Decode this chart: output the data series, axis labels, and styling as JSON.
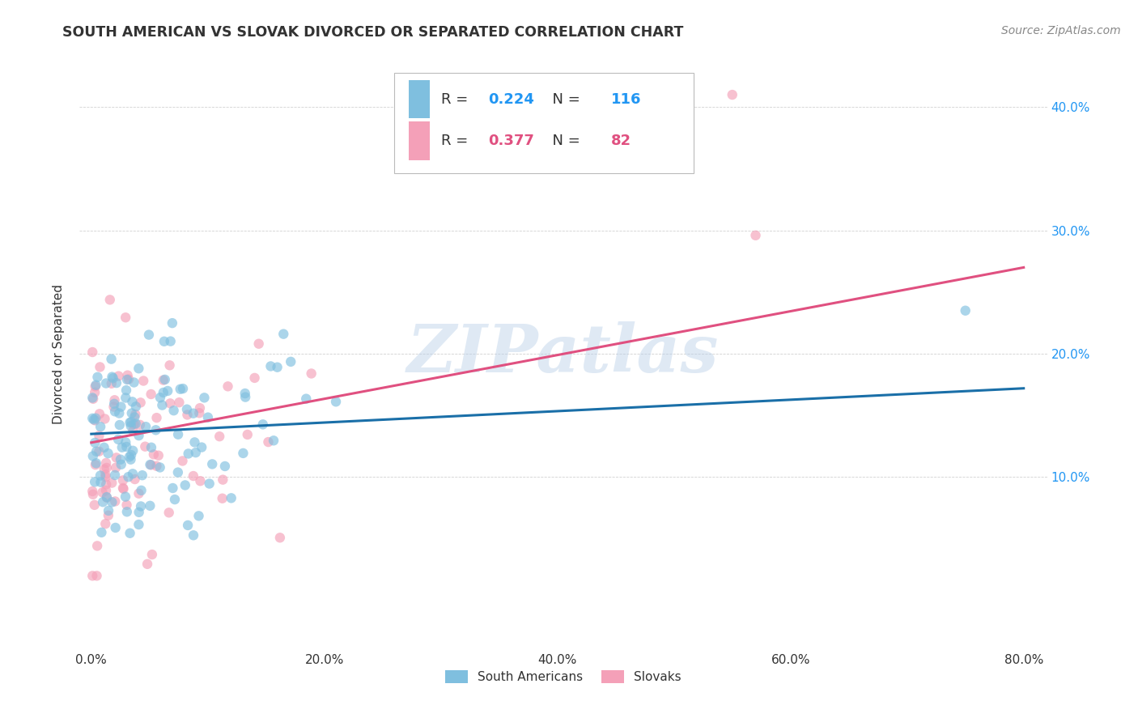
{
  "title": "SOUTH AMERICAN VS SLOVAK DIVORCED OR SEPARATED CORRELATION CHART",
  "source": "Source: ZipAtlas.com",
  "ylabel": "Divorced or Separated",
  "xlim": [
    -0.01,
    0.82
  ],
  "ylim": [
    -0.04,
    0.44
  ],
  "x_tick_vals": [
    0.0,
    0.2,
    0.4,
    0.6,
    0.8
  ],
  "x_tick_labels": [
    "0.0%",
    "20.0%",
    "40.0%",
    "60.0%",
    "80.0%"
  ],
  "y_tick_vals": [
    0.1,
    0.2,
    0.3,
    0.4
  ],
  "y_tick_labels": [
    "10.0%",
    "20.0%",
    "30.0%",
    "40.0%"
  ],
  "blue_R": 0.224,
  "blue_N": 116,
  "pink_R": 0.377,
  "pink_N": 82,
  "blue_color": "#7fbfdf",
  "pink_color": "#f4a0b8",
  "blue_line_color": "#1a6fa8",
  "pink_line_color": "#e05080",
  "watermark": "ZIPatlas",
  "legend_label_blue": "South Americans",
  "legend_label_pink": "Slovaks",
  "blue_line_x0": 0.0,
  "blue_line_y0": 0.135,
  "blue_line_x1": 0.8,
  "blue_line_y1": 0.172,
  "pink_line_x0": 0.0,
  "pink_line_y0": 0.128,
  "pink_line_x1": 0.8,
  "pink_line_y1": 0.27,
  "text_color_dark": "#333333",
  "text_color_blue": "#2196F3",
  "text_color_pink": "#e05080",
  "source_color": "#888888",
  "grid_color": "#cccccc",
  "right_axis_color": "#2196F3"
}
